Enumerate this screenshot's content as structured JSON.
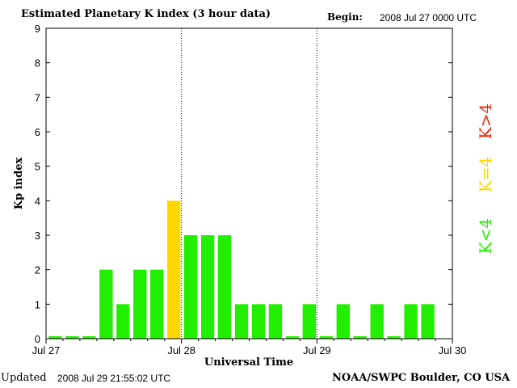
{
  "header": {
    "title": "Estimated Planetary K index (3 hour data)",
    "begin_label": "Begin:",
    "begin_value": "2008 Jul 27 0000 UTC"
  },
  "footer": {
    "updated_label": "Updated",
    "updated_value": "2008 Jul 29 21:55:02 UTC",
    "credit": "NOAA/SWPC Boulder, CO USA"
  },
  "legend": {
    "below": "K<4",
    "equal": "K=4",
    "above": "K>4"
  },
  "colors": {
    "below": "#22ee00",
    "equal": "#ffd700",
    "above": "#ee2200"
  },
  "chart_data": {
    "type": "bar",
    "title": "Estimated Planetary K index (3 hour data)",
    "xlabel": "Universal Time",
    "ylabel": "Kp index",
    "ylim": [
      0,
      9
    ],
    "yticks": [
      0,
      1,
      2,
      3,
      4,
      5,
      6,
      7,
      8,
      9
    ],
    "xtick_labels": [
      "Jul 27",
      "Jul 28",
      "Jul 29",
      "Jul 30"
    ],
    "day_dividers": [
      "Jul 28",
      "Jul 29"
    ],
    "intervals_per_day": 8,
    "values": [
      0,
      0,
      0,
      2,
      1,
      2,
      2,
      4,
      3,
      3,
      3,
      1,
      1,
      1,
      0,
      1,
      0,
      1,
      0,
      1,
      0,
      1,
      1
    ]
  }
}
